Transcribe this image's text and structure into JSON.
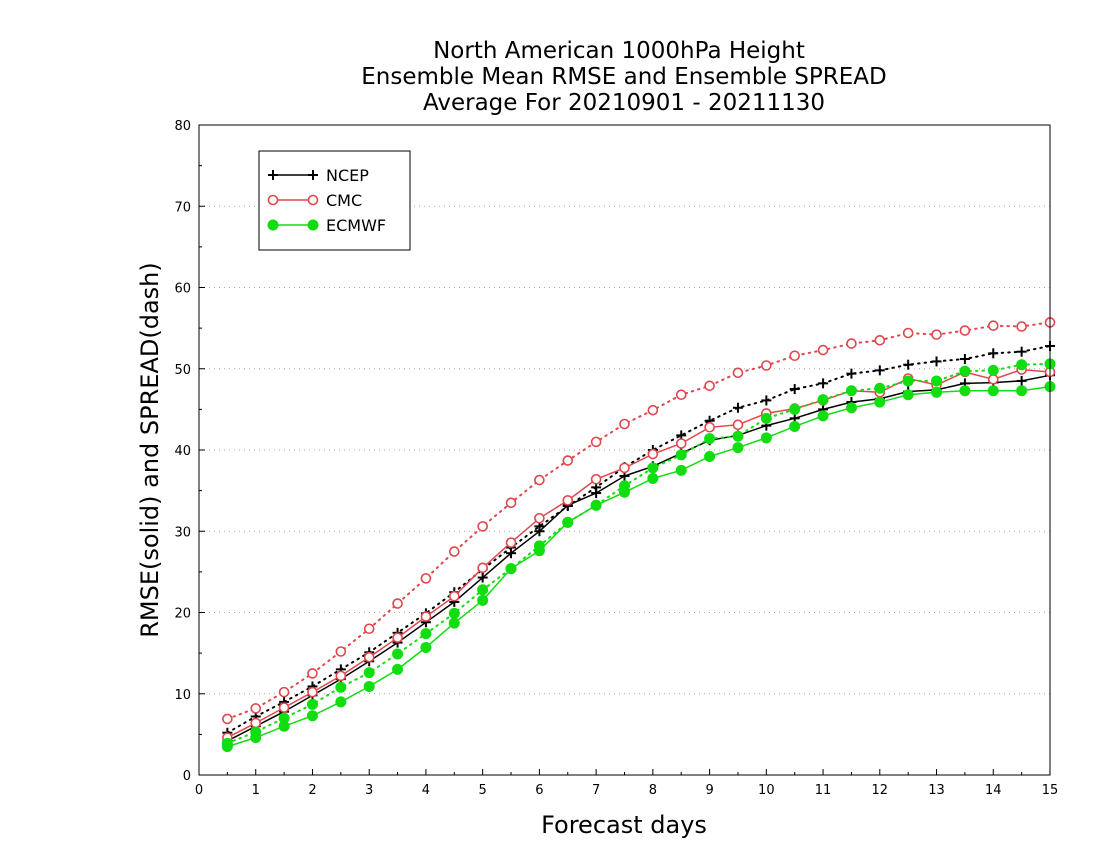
{
  "chart_data": {
    "type": "line",
    "title_lines": [
      "North American 1000hPa Height",
      "Ensemble Mean RMSE and Ensemble SPREAD",
      "Average For 20210901 - 20211130"
    ],
    "xlabel": "Forecast days",
    "ylabel": "RMSE(solid) and SPREAD(dash)",
    "xlim": [
      0,
      15
    ],
    "ylim": [
      0,
      80
    ],
    "xticks": [
      "0",
      "1",
      "2",
      "3",
      "4",
      "5",
      "6",
      "7",
      "8",
      "9",
      "10",
      "11",
      "12",
      "13",
      "14",
      "15"
    ],
    "yticks": [
      "0",
      "10",
      "20",
      "30",
      "40",
      "50",
      "60",
      "70",
      "80"
    ],
    "grid": true,
    "legend_position": "top-left",
    "x": [
      0.5,
      1,
      1.5,
      2,
      2.5,
      3,
      3.5,
      4,
      4.5,
      5,
      5.5,
      6,
      6.5,
      7,
      7.5,
      8,
      8.5,
      9,
      9.5,
      10,
      10.5,
      11,
      11.5,
      12,
      12.5,
      13,
      13.5,
      14,
      14.5,
      15
    ],
    "series": [
      {
        "name": "NCEP",
        "color": "#000000",
        "marker": "plus",
        "rmse": [
          4.2,
          6.0,
          7.8,
          9.8,
          11.8,
          14.0,
          16.3,
          18.8,
          21.3,
          24.3,
          27.3,
          30.0,
          33.2,
          34.7,
          36.8,
          38.0,
          39.6,
          41.2,
          41.8,
          43.0,
          43.9,
          45.0,
          45.9,
          46.3,
          47.2,
          47.4,
          48.2,
          48.3,
          48.5,
          49.2
        ],
        "spread": [
          5.2,
          7.2,
          9.0,
          10.9,
          13.0,
          15.1,
          17.5,
          19.9,
          22.5,
          25.3,
          28.0,
          30.6,
          33.1,
          35.4,
          37.9,
          40.0,
          41.8,
          43.6,
          45.2,
          46.1,
          47.5,
          48.2,
          49.4,
          49.8,
          50.5,
          50.9,
          51.2,
          51.9,
          52.1,
          52.8
        ]
      },
      {
        "name": "CMC",
        "color": "#e0474c",
        "marker": "circle",
        "rmse": [
          4.6,
          6.4,
          8.3,
          10.2,
          12.2,
          14.5,
          16.9,
          19.5,
          22.0,
          25.5,
          28.6,
          31.6,
          33.8,
          36.4,
          37.8,
          39.5,
          40.8,
          42.8,
          43.1,
          44.5,
          45.1,
          46.1,
          47.3,
          47.1,
          48.8,
          48.0,
          49.6,
          48.7,
          49.9,
          49.6
        ],
        "spread": [
          6.9,
          8.2,
          10.2,
          12.5,
          15.2,
          18.0,
          21.1,
          24.2,
          27.5,
          30.6,
          33.5,
          36.3,
          38.7,
          41.0,
          43.2,
          44.9,
          46.8,
          47.9,
          49.5,
          50.4,
          51.6,
          52.3,
          53.1,
          53.5,
          54.4,
          54.2,
          54.7,
          55.3,
          55.2,
          55.7
        ]
      },
      {
        "name": "ECMWF",
        "color": "#11dd11",
        "marker": "dot",
        "rmse": [
          3.5,
          4.6,
          6.0,
          7.3,
          9.0,
          10.9,
          13.0,
          15.7,
          18.7,
          21.5,
          25.4,
          27.6,
          31.1,
          33.2,
          34.8,
          36.5,
          37.5,
          39.2,
          40.3,
          41.5,
          42.9,
          44.2,
          45.2,
          45.9,
          46.8,
          47.1,
          47.3,
          47.3,
          47.3,
          47.8
        ],
        "spread": [
          3.9,
          5.3,
          7.0,
          8.7,
          10.8,
          12.6,
          14.9,
          17.4,
          19.9,
          22.8,
          25.4,
          28.2,
          31.1,
          33.2,
          35.6,
          37.8,
          39.4,
          41.4,
          41.7,
          43.9,
          45.0,
          46.2,
          47.3,
          47.6,
          48.5,
          48.5,
          49.7,
          49.8,
          50.5,
          50.6
        ]
      }
    ]
  }
}
